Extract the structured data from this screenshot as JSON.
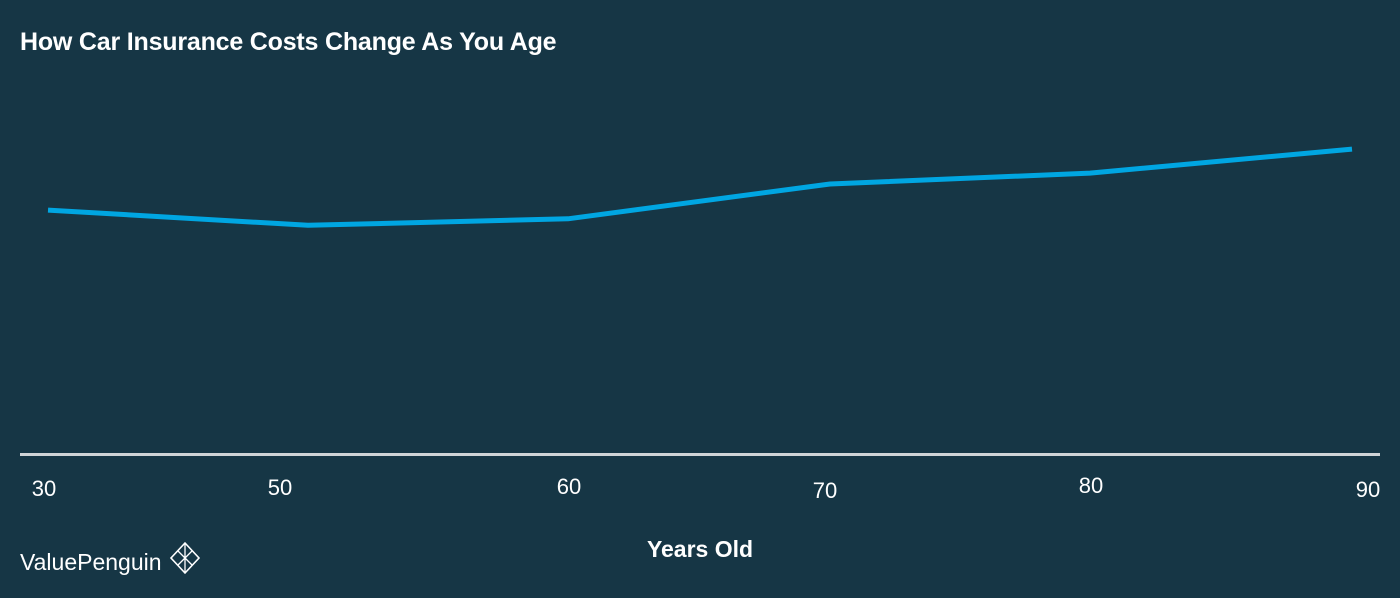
{
  "chart_data": {
    "type": "line",
    "title": "How Car Insurance Costs Change As You Age",
    "xlabel": "Years Old",
    "ylabel": "",
    "categories": [
      "30",
      "50",
      "60",
      "70",
      "80",
      "90"
    ],
    "series": [
      {
        "color": "#00a6e2",
        "values": [
          1.12,
          1.05,
          1.08,
          1.24,
          1.29,
          1.4
        ]
      }
    ],
    "ylim": [
      0,
      1.8
    ],
    "grid": false,
    "legend": "none"
  },
  "branding": {
    "name": "ValuePenguin",
    "logo_icon": "penguin-diamond-icon"
  },
  "colors": {
    "background": "#163645",
    "line": "#00a6e2",
    "axis": "#cfd4d7",
    "text": "#ffffff"
  }
}
